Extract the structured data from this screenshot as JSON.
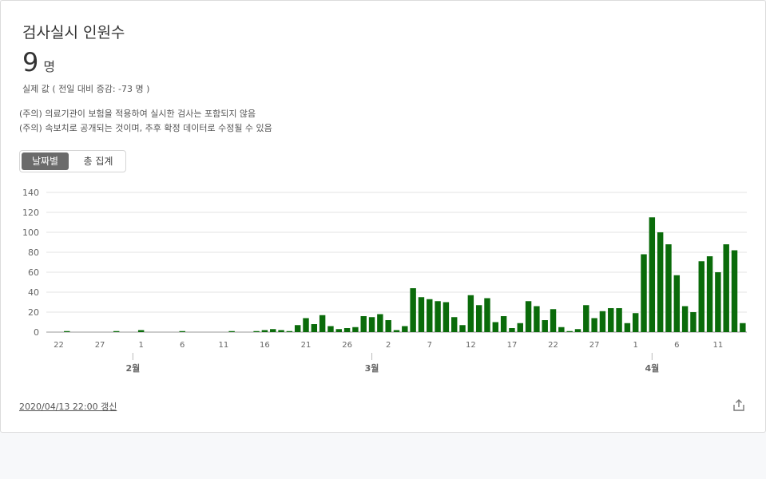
{
  "card": {
    "title": "검사실시 인원수",
    "value": "9",
    "unit": "명",
    "delta": "실제 값 ( 전일 대비 증감: -73 명 )",
    "notes": [
      "(주의) 의료기관이 보험을 적용하여 실시한 검사는 포함되지 않음",
      "(주의) 속보치로 공개되는 것이며, 추후 확정 데이터로 수정될 수 있음"
    ],
    "toggle": {
      "active": "날짜별",
      "inactive": "총 집계"
    },
    "updated": "2020/04/13 22:00 갱신",
    "share_icon": "share-icon"
  },
  "chart_data": {
    "type": "bar",
    "color": "#0a6b0a",
    "ylim": [
      0,
      140
    ],
    "yticks": [
      0,
      20,
      40,
      60,
      80,
      100,
      120,
      140
    ],
    "grid": true,
    "day_tick_labels": [
      "22",
      "27",
      "1",
      "6",
      "11",
      "16",
      "21",
      "26",
      "2",
      "7",
      "12",
      "17",
      "22",
      "27",
      "1",
      "6",
      "11"
    ],
    "month_labels": [
      "2월",
      "3월",
      "4월"
    ],
    "values": [
      0,
      0,
      1,
      0,
      0,
      0,
      0,
      0,
      1,
      0,
      0,
      2,
      0,
      0,
      0,
      0,
      1,
      0,
      0,
      0,
      0,
      0,
      1,
      0,
      0,
      1,
      2,
      3,
      2,
      1,
      7,
      14,
      8,
      17,
      6,
      3,
      4,
      5,
      16,
      15,
      18,
      12,
      2,
      6,
      44,
      35,
      33,
      31,
      30,
      15,
      7,
      37,
      27,
      34,
      10,
      16,
      4,
      9,
      31,
      26,
      12,
      23,
      5,
      1,
      3,
      27,
      14,
      21,
      24,
      24,
      9,
      19,
      78,
      115,
      100,
      88,
      57,
      26,
      20,
      71,
      76,
      60,
      88,
      82,
      9
    ]
  }
}
